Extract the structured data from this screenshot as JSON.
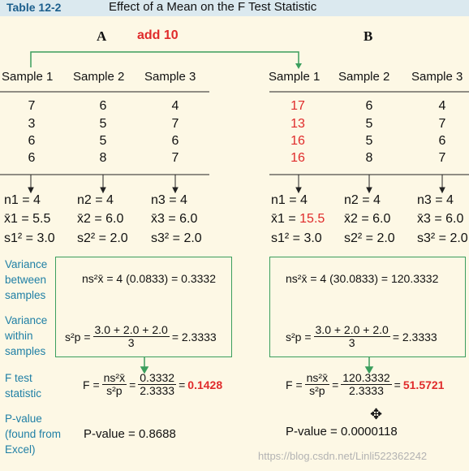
{
  "header": {
    "tag": "Table 12-2",
    "title": "Effect of a Mean on the F Test Statistic"
  },
  "col_a": {
    "label": "A",
    "add": "add 10"
  },
  "col_b": {
    "label": "B"
  },
  "samples_a": [
    "Sample 1",
    "Sample 2",
    "Sample 3"
  ],
  "samples_b": [
    "Sample 1",
    "Sample 2",
    "Sample 3"
  ],
  "data_a": [
    [
      "7",
      "3",
      "6",
      "6"
    ],
    [
      "6",
      "5",
      "5",
      "8"
    ],
    [
      "4",
      "7",
      "6",
      "7"
    ]
  ],
  "data_b": [
    [
      "17",
      "13",
      "16",
      "16"
    ],
    [
      "6",
      "5",
      "5",
      "8"
    ],
    [
      "4",
      "7",
      "6",
      "7"
    ]
  ],
  "stats_a": {
    "n": [
      "n1 = 4",
      "n2 = 4",
      "n3 = 4"
    ],
    "xbar": [
      "x̄1 = 5.5",
      "x̄2 = 6.0",
      "x̄3 = 6.0"
    ],
    "s2": [
      "s1² = 3.0",
      "s2² = 2.0",
      "s3² = 2.0"
    ]
  },
  "stats_b": {
    "n": [
      "n1 = 4",
      "n2 = 4",
      "n3 = 4"
    ],
    "xbar_prefix": [
      "x̄1 = ",
      "x̄2 = ",
      "x̄3 = "
    ],
    "xbar_val": [
      "15.5",
      "6.0",
      "6.0"
    ],
    "s2": [
      "s1² = 3.0",
      "s2² = 2.0",
      "s3² = 2.0"
    ]
  },
  "labels": {
    "between": "Variance between samples",
    "within": "Variance within samples",
    "ftest": "F test statistic",
    "pvalue": "P-value (found from Excel)"
  },
  "a": {
    "between": "ns²x̄ = 4 (0.0833) = 0.3332",
    "within_lhs": "s²p =",
    "within_num": "3.0 + 2.0 + 2.0",
    "within_den": "3",
    "within_rhs": "= 2.3333",
    "f_lhs": "F =",
    "f_n1": "ns²x̄",
    "f_d1": "s²p",
    "f_n2": "0.3332",
    "f_d2": "2.3333",
    "f_val": "0.1428",
    "pvalue": "P-value = 0.8688"
  },
  "b": {
    "between": "ns²x̄ = 4 (30.0833) = 120.3332",
    "within_lhs": "s²p =",
    "within_num": "3.0 + 2.0 + 2.0",
    "within_den": "3",
    "within_rhs": "= 2.3333",
    "f_lhs": "F =",
    "f_n1": "ns²x̄",
    "f_d1": "s²p",
    "f_n2": "120.3332",
    "f_d2": "2.3333",
    "f_val": "51.5721",
    "pvalue": "P-value = 0.0000118"
  },
  "watermark": "https://blog.csdn.net/Linli522362242",
  "colors": {
    "accent_red": "#e02b2b",
    "label_blue": "#1f7fa5",
    "box_green": "#3b9e5d",
    "header_blue": "#1b5e8c"
  }
}
